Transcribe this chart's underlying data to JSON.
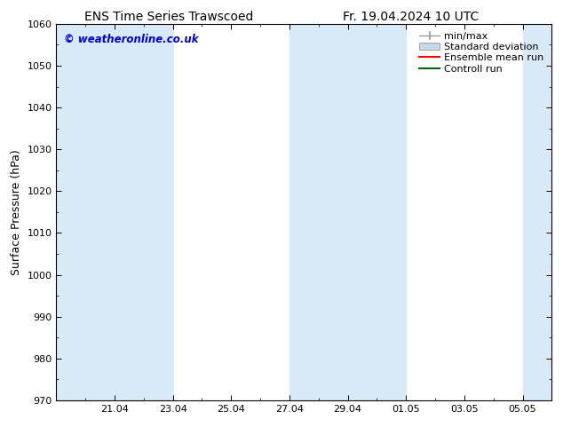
{
  "title_left": "ENS Time Series Trawscoed",
  "title_right": "Fr. 19.04.2024 10 UTC",
  "ylabel": "Surface Pressure (hPa)",
  "ylim": [
    970,
    1060
  ],
  "yticks": [
    970,
    980,
    990,
    1000,
    1010,
    1020,
    1030,
    1040,
    1050,
    1060
  ],
  "xtick_labels": [
    "21.04",
    "23.04",
    "25.04",
    "27.04",
    "29.04",
    "01.05",
    "03.05",
    "05.05"
  ],
  "num_x_days": 16,
  "shaded_bands": [
    {
      "xmin": 0.0,
      "xmax": 2.0
    },
    {
      "xmin": 2.0,
      "xmax": 4.0
    },
    {
      "xmin": 8.0,
      "xmax": 10.0
    },
    {
      "xmin": 10.0,
      "xmax": 12.0
    },
    {
      "xmin": 16.0,
      "xmax": 17.0
    }
  ],
  "band_color": "#d9eaf7",
  "watermark": "© weatheronline.co.uk",
  "watermark_color": "#0000cc",
  "legend_labels": [
    "min/max",
    "Standard deviation",
    "Ensemble mean run",
    "Controll run"
  ],
  "legend_colors": [
    "#999999",
    "#c8d8e8",
    "#ff0000",
    "#006600"
  ],
  "background_color": "#ffffff",
  "title_fontsize": 10,
  "axis_label_fontsize": 9,
  "tick_fontsize": 8,
  "legend_fontsize": 8
}
